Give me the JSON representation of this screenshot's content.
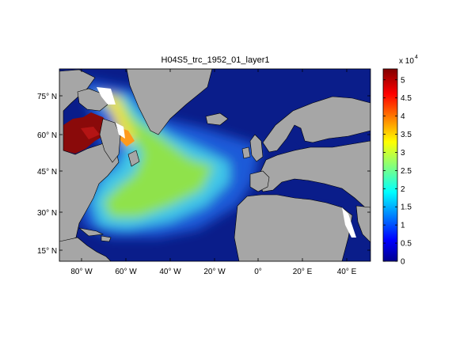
{
  "figure": {
    "title": "H04S5_trc_1952_01_layer1",
    "colors": {
      "land": "#a6a6a6",
      "frame": "#000000",
      "background": "#ffffff",
      "nodata": "#ffffff"
    }
  },
  "chart_data": {
    "type": "heatmap",
    "title": "H04S5_trc_1952_01_layer1",
    "xlabel": "",
    "ylabel": "",
    "x_ticks": [
      "80° W",
      "60° W",
      "40° W",
      "20° W",
      "0°",
      "20° E",
      "40° E"
    ],
    "y_ticks": [
      "15° N",
      "30° N",
      "45° N",
      "60° N",
      "75° N"
    ],
    "xlim_lon": [
      -92,
      48
    ],
    "ylim_lat": [
      10,
      86
    ],
    "colorbar": {
      "multiplier_label": "x 10",
      "exponent": "4",
      "ticks": [
        "0",
        "0.5",
        "1",
        "1.5",
        "2",
        "2.5",
        "3",
        "3.5",
        "4",
        "4.5",
        "5"
      ],
      "range": [
        0,
        5.3
      ],
      "colormap": "jet"
    }
  }
}
